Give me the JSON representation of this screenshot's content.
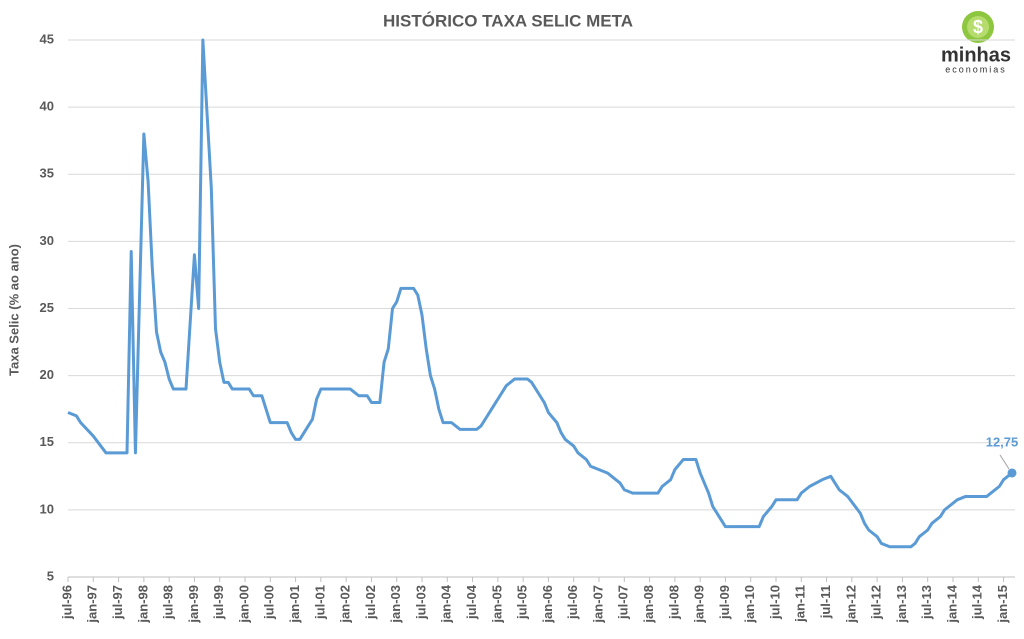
{
  "logo": {
    "name": "minhas",
    "tagline": "economias"
  },
  "chart_data": {
    "type": "line",
    "title": "HISTÓRICO TAXA SELIC META",
    "y_label": "Taxa Selic (% ao ano)",
    "xlim": [
      "1996-07",
      "2015-03"
    ],
    "ylim": [
      5,
      45
    ],
    "yticks": [
      5,
      10,
      15,
      20,
      25,
      30,
      35,
      40,
      45
    ],
    "grid": true,
    "xticks": [
      {
        "value": "1996-07",
        "label": "jul-96"
      },
      {
        "value": "1997-01",
        "label": "jan-97"
      },
      {
        "value": "1997-07",
        "label": "jul-97"
      },
      {
        "value": "1998-01",
        "label": "jan-98"
      },
      {
        "value": "1998-07",
        "label": "jul-98"
      },
      {
        "value": "1999-01",
        "label": "jan-99"
      },
      {
        "value": "1999-07",
        "label": "jul-99"
      },
      {
        "value": "2000-01",
        "label": "jan-00"
      },
      {
        "value": "2000-07",
        "label": "jul-00"
      },
      {
        "value": "2001-01",
        "label": "jan-01"
      },
      {
        "value": "2001-07",
        "label": "jul-01"
      },
      {
        "value": "2002-01",
        "label": "jan-02"
      },
      {
        "value": "2002-07",
        "label": "jul-02"
      },
      {
        "value": "2003-01",
        "label": "jan-03"
      },
      {
        "value": "2003-07",
        "label": "jul-03"
      },
      {
        "value": "2004-01",
        "label": "jan-04"
      },
      {
        "value": "2004-07",
        "label": "jul-04"
      },
      {
        "value": "2005-01",
        "label": "jan-05"
      },
      {
        "value": "2005-07",
        "label": "jul-05"
      },
      {
        "value": "2006-01",
        "label": "jan-06"
      },
      {
        "value": "2006-07",
        "label": "jul-06"
      },
      {
        "value": "2007-01",
        "label": "jan-07"
      },
      {
        "value": "2007-07",
        "label": "jul-07"
      },
      {
        "value": "2008-01",
        "label": "jan-08"
      },
      {
        "value": "2008-07",
        "label": "jul-08"
      },
      {
        "value": "2009-01",
        "label": "jan-09"
      },
      {
        "value": "2009-07",
        "label": "jul-09"
      },
      {
        "value": "2010-01",
        "label": "jan-10"
      },
      {
        "value": "2010-07",
        "label": "jul-10"
      },
      {
        "value": "2011-01",
        "label": "jan-11"
      },
      {
        "value": "2011-07",
        "label": "jul-11"
      },
      {
        "value": "2012-01",
        "label": "jan-12"
      },
      {
        "value": "2012-07",
        "label": "jul-12"
      },
      {
        "value": "2013-01",
        "label": "jan-13"
      },
      {
        "value": "2013-07",
        "label": "jul-13"
      },
      {
        "value": "2014-01",
        "label": "jan-14"
      },
      {
        "value": "2014-07",
        "label": "jul-14"
      },
      {
        "value": "2015-01",
        "label": "jan-15"
      }
    ],
    "x": [
      "1996-07",
      "1996-09",
      "1996-10",
      "1997-01",
      "1997-04",
      "1997-09",
      "1997-10",
      "1997-11",
      "1998-01",
      "1998-02",
      "1998-03",
      "1998-04",
      "1998-05",
      "1998-06",
      "1998-07",
      "1998-08",
      "1998-11",
      "1999-01",
      "1999-02",
      "1999-03",
      "1999-04",
      "1999-05",
      "1999-06",
      "1999-07",
      "1999-08",
      "1999-09",
      "1999-10",
      "2000-02",
      "2000-03",
      "2000-05",
      "2000-06",
      "2000-07",
      "2000-11",
      "2000-12",
      "2001-01",
      "2001-02",
      "2001-03",
      "2001-04",
      "2001-05",
      "2001-06",
      "2001-07",
      "2002-02",
      "2002-03",
      "2002-04",
      "2002-06",
      "2002-07",
      "2002-09",
      "2002-10",
      "2002-11",
      "2002-12",
      "2003-01",
      "2003-02",
      "2003-05",
      "2003-06",
      "2003-07",
      "2003-08",
      "2003-09",
      "2003-10",
      "2003-11",
      "2003-12",
      "2004-02",
      "2004-03",
      "2004-04",
      "2004-08",
      "2004-09",
      "2004-10",
      "2004-11",
      "2004-12",
      "2005-01",
      "2005-02",
      "2005-03",
      "2005-04",
      "2005-05",
      "2005-08",
      "2005-09",
      "2005-10",
      "2005-11",
      "2005-12",
      "2006-01",
      "2006-03",
      "2006-04",
      "2006-05",
      "2006-07",
      "2006-08",
      "2006-10",
      "2006-11",
      "2007-01",
      "2007-03",
      "2007-04",
      "2007-06",
      "2007-07",
      "2007-09",
      "2008-03",
      "2008-04",
      "2008-06",
      "2008-07",
      "2008-09",
      "2008-12",
      "2009-01",
      "2009-03",
      "2009-04",
      "2009-06",
      "2009-07",
      "2010-03",
      "2010-04",
      "2010-06",
      "2010-07",
      "2010-12",
      "2011-01",
      "2011-03",
      "2011-06",
      "2011-08",
      "2011-09",
      "2011-10",
      "2011-12",
      "2012-03",
      "2012-04",
      "2012-05",
      "2012-07",
      "2012-08",
      "2012-10",
      "2013-03",
      "2013-04",
      "2013-05",
      "2013-07",
      "2013-08",
      "2013-10",
      "2013-11",
      "2014-01",
      "2014-02",
      "2014-04",
      "2014-09",
      "2014-10",
      "2014-12",
      "2015-01",
      "2015-03"
    ],
    "series": [
      {
        "name": "Taxa Selic Meta",
        "color": "#5b9bd5",
        "values": [
          17.25,
          17,
          16.5,
          15.5,
          14.25,
          14.25,
          29.25,
          14.25,
          38,
          34.5,
          28,
          23.25,
          21.75,
          21,
          19.75,
          19,
          19,
          29,
          25,
          45,
          39.5,
          34,
          23.5,
          21,
          19.5,
          19.5,
          19,
          19,
          18.5,
          18.5,
          17.5,
          16.5,
          16.5,
          15.75,
          15.25,
          15.25,
          15.75,
          16.25,
          16.75,
          18.25,
          19,
          19,
          18.75,
          18.5,
          18.5,
          18,
          18,
          21,
          22,
          25,
          25.5,
          26.5,
          26.5,
          26,
          24.5,
          22,
          20,
          19,
          17.5,
          16.5,
          16.5,
          16.25,
          16,
          16,
          16.25,
          16.75,
          17.25,
          17.75,
          18.25,
          18.75,
          19.25,
          19.5,
          19.75,
          19.75,
          19.5,
          19,
          18.5,
          18,
          17.25,
          16.5,
          15.75,
          15.25,
          14.75,
          14.25,
          13.75,
          13.25,
          13,
          12.75,
          12.5,
          12,
          11.5,
          11.25,
          11.25,
          11.75,
          12.25,
          13,
          13.75,
          13.75,
          12.75,
          11.25,
          10.25,
          9.25,
          8.75,
          8.75,
          9.5,
          10.25,
          10.75,
          10.75,
          11.25,
          11.75,
          12.25,
          12.5,
          12,
          11.5,
          11,
          9.75,
          9,
          8.5,
          8,
          7.5,
          7.25,
          7.25,
          7.5,
          8,
          8.5,
          9,
          9.5,
          10,
          10.5,
          10.75,
          11,
          11,
          11.25,
          11.75,
          12.25,
          12.75
        ],
        "value_labels": [
          null,
          null,
          null,
          null,
          null,
          null,
          null,
          null,
          null,
          null,
          null,
          null,
          null,
          null,
          null,
          null,
          null,
          null,
          null,
          null,
          null,
          null,
          null,
          null,
          null,
          null,
          null,
          null,
          null,
          null,
          null,
          null,
          null,
          null,
          null,
          null,
          null,
          null,
          null,
          null,
          null,
          null,
          null,
          null,
          null,
          null,
          null,
          null,
          null,
          null,
          null,
          null,
          null,
          null,
          null,
          null,
          null,
          null,
          null,
          null,
          null,
          null,
          null,
          null,
          null,
          null,
          null,
          null,
          null,
          null,
          null,
          null,
          null,
          null,
          null,
          null,
          null,
          null,
          null,
          null,
          null,
          null,
          null,
          null,
          null,
          null,
          null,
          null,
          null,
          null,
          null,
          null,
          null,
          null,
          null,
          null,
          null,
          null,
          null,
          null,
          null,
          null,
          null,
          null,
          null,
          null,
          null,
          null,
          null,
          null,
          null,
          null,
          null,
          null,
          null,
          null,
          null,
          null,
          null,
          null,
          null,
          null,
          null,
          null,
          null,
          null,
          null,
          null,
          null,
          null,
          null,
          null,
          null,
          null,
          null,
          "12,75"
        ]
      }
    ]
  }
}
